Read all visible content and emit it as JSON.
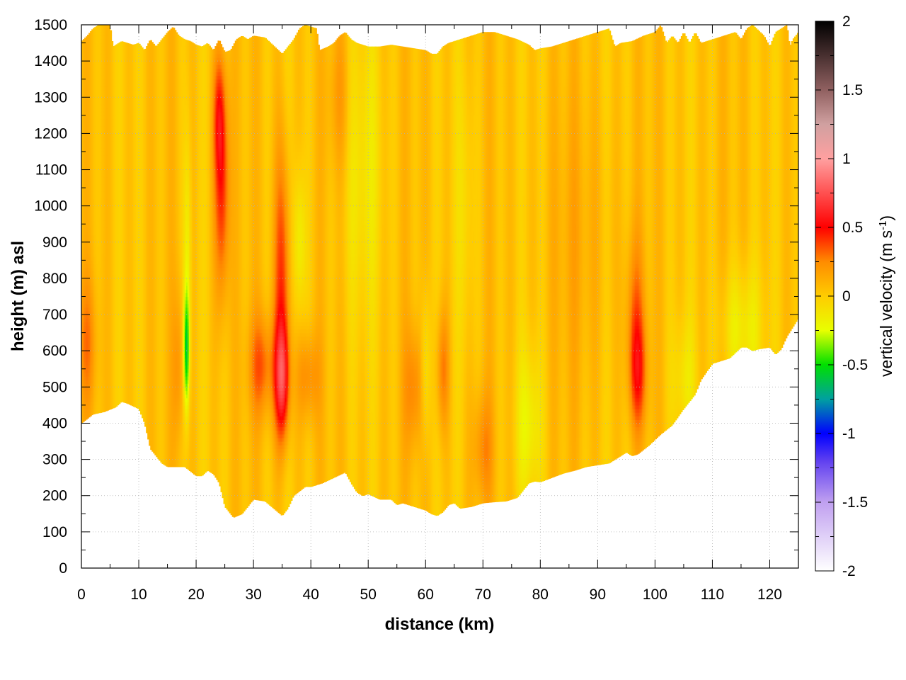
{
  "chart_data": {
    "type": "heatmap",
    "subtype": "filled-contour cross-section",
    "xlabel": "distance (km)",
    "ylabel": "height (m) asl",
    "xlim": [
      0,
      125
    ],
    "ylim": [
      0,
      1500
    ],
    "x_ticks": [
      0,
      10,
      20,
      30,
      40,
      50,
      60,
      70,
      80,
      90,
      100,
      110,
      120
    ],
    "x_tick_labels": [
      "0",
      "10",
      "20",
      "30",
      "40",
      "50",
      "60",
      "70",
      "80",
      "90",
      "100",
      "110",
      "120"
    ],
    "y_ticks": [
      0,
      100,
      200,
      300,
      400,
      500,
      600,
      700,
      800,
      900,
      1000,
      1100,
      1200,
      1300,
      1400,
      1500
    ],
    "y_tick_labels": [
      "0",
      "100",
      "200",
      "300",
      "400",
      "500",
      "600",
      "700",
      "800",
      "900",
      "1000",
      "1100",
      "1200",
      "1300",
      "1400",
      "1500"
    ],
    "grid": true,
    "colorbar": {
      "label_text": "vertical velocity (m s",
      "label_sup": "-1",
      "label_close": ")",
      "range": [
        -2,
        2
      ],
      "ticks": [
        2,
        1.5,
        1,
        0.5,
        0,
        -0.5,
        -1,
        -1.5,
        -2
      ],
      "tick_labels": [
        "2",
        "1.5",
        "1",
        "0.5",
        "0",
        "-0.5",
        "-1",
        "-1.5",
        "-2"
      ],
      "stops": [
        {
          "v": -2.0,
          "color": "#ffffff"
        },
        {
          "v": -1.5,
          "color": "#c0a0f0"
        },
        {
          "v": -1.2,
          "color": "#6040f0"
        },
        {
          "v": -1.0,
          "color": "#0000ff"
        },
        {
          "v": -0.75,
          "color": "#00a0a0"
        },
        {
          "v": -0.5,
          "color": "#00e000"
        },
        {
          "v": -0.25,
          "color": "#e8ff00"
        },
        {
          "v": 0.0,
          "color": "#ffcc00"
        },
        {
          "v": 0.25,
          "color": "#ff8c00"
        },
        {
          "v": 0.5,
          "color": "#ff0000"
        },
        {
          "v": 0.75,
          "color": "#ff5050"
        },
        {
          "v": 1.0,
          "color": "#ffa0a0"
        },
        {
          "v": 1.25,
          "color": "#d0a0a0"
        },
        {
          "v": 1.5,
          "color": "#906060"
        },
        {
          "v": 2.0,
          "color": "#000000"
        }
      ]
    },
    "bottom_boundary": [
      [
        0,
        400
      ],
      [
        2,
        425
      ],
      [
        4,
        432
      ],
      [
        6,
        445
      ],
      [
        7,
        460
      ],
      [
        8,
        455
      ],
      [
        10,
        440
      ],
      [
        11,
        400
      ],
      [
        12,
        330
      ],
      [
        14,
        290
      ],
      [
        15,
        280
      ],
      [
        18,
        280
      ],
      [
        20,
        255
      ],
      [
        21,
        255
      ],
      [
        22,
        270
      ],
      [
        23,
        260
      ],
      [
        24,
        235
      ],
      [
        25,
        170
      ],
      [
        26.5,
        140
      ],
      [
        28,
        150
      ],
      [
        30,
        190
      ],
      [
        32,
        185
      ],
      [
        33.5,
        165
      ],
      [
        35,
        145
      ],
      [
        36,
        165
      ],
      [
        37,
        200
      ],
      [
        39,
        225
      ],
      [
        40,
        225
      ],
      [
        42,
        235
      ],
      [
        44,
        250
      ],
      [
        46,
        265
      ],
      [
        47,
        235
      ],
      [
        48,
        210
      ],
      [
        49,
        200
      ],
      [
        50,
        205
      ],
      [
        52,
        190
      ],
      [
        54,
        190
      ],
      [
        55,
        175
      ],
      [
        56,
        180
      ],
      [
        58,
        170
      ],
      [
        60,
        160
      ],
      [
        61,
        150
      ],
      [
        62,
        145
      ],
      [
        63,
        155
      ],
      [
        64,
        175
      ],
      [
        65,
        180
      ],
      [
        66,
        165
      ],
      [
        68,
        170
      ],
      [
        70,
        180
      ],
      [
        72,
        183
      ],
      [
        74,
        185
      ],
      [
        76,
        195
      ],
      [
        78,
        235
      ],
      [
        79,
        240
      ],
      [
        80,
        238
      ],
      [
        82,
        250
      ],
      [
        84,
        262
      ],
      [
        86,
        270
      ],
      [
        88,
        280
      ],
      [
        90,
        285
      ],
      [
        92,
        290
      ],
      [
        93,
        300
      ],
      [
        95,
        320
      ],
      [
        96,
        310
      ],
      [
        97,
        315
      ],
      [
        99,
        340
      ],
      [
        101,
        370
      ],
      [
        103,
        395
      ],
      [
        105,
        440
      ],
      [
        107,
        480
      ],
      [
        108,
        520
      ],
      [
        110,
        565
      ],
      [
        112,
        575
      ],
      [
        113,
        580
      ],
      [
        114,
        595
      ],
      [
        115,
        610
      ],
      [
        116,
        610
      ],
      [
        117,
        600
      ],
      [
        118,
        605
      ],
      [
        120,
        610
      ],
      [
        121,
        590
      ],
      [
        122,
        605
      ],
      [
        123,
        640
      ],
      [
        124,
        665
      ],
      [
        125,
        690
      ]
    ],
    "top_boundary": [
      [
        0,
        1455
      ],
      [
        1,
        1470
      ],
      [
        2,
        1490
      ],
      [
        3,
        1500
      ],
      [
        5,
        1500
      ],
      [
        5.5,
        1440
      ],
      [
        6,
        1445
      ],
      [
        7,
        1455
      ],
      [
        8,
        1450
      ],
      [
        9,
        1445
      ],
      [
        10,
        1450
      ],
      [
        11,
        1430
      ],
      [
        12,
        1460
      ],
      [
        13,
        1440
      ],
      [
        14,
        1460
      ],
      [
        15,
        1480
      ],
      [
        16,
        1495
      ],
      [
        17,
        1470
      ],
      [
        18,
        1460
      ],
      [
        19,
        1455
      ],
      [
        20,
        1445
      ],
      [
        21,
        1440
      ],
      [
        22,
        1450
      ],
      [
        23,
        1430
      ],
      [
        24,
        1460
      ],
      [
        25,
        1425
      ],
      [
        26,
        1430
      ],
      [
        27,
        1460
      ],
      [
        28,
        1470
      ],
      [
        29,
        1460
      ],
      [
        30,
        1470
      ],
      [
        32,
        1465
      ],
      [
        33,
        1450
      ],
      [
        35,
        1420
      ],
      [
        36,
        1440
      ],
      [
        37,
        1460
      ],
      [
        38,
        1490
      ],
      [
        39,
        1500
      ],
      [
        41,
        1490
      ],
      [
        41.5,
        1430
      ],
      [
        43,
        1440
      ],
      [
        44,
        1450
      ],
      [
        45,
        1470
      ],
      [
        46,
        1480
      ],
      [
        47,
        1460
      ],
      [
        48,
        1450
      ],
      [
        50,
        1440
      ],
      [
        52,
        1440
      ],
      [
        54,
        1445
      ],
      [
        56,
        1440
      ],
      [
        58,
        1435
      ],
      [
        60,
        1430
      ],
      [
        61,
        1420
      ],
      [
        62,
        1420
      ],
      [
        63,
        1440
      ],
      [
        64,
        1450
      ],
      [
        66,
        1460
      ],
      [
        68,
        1470
      ],
      [
        70,
        1480
      ],
      [
        72,
        1480
      ],
      [
        74,
        1470
      ],
      [
        76,
        1460
      ],
      [
        78,
        1445
      ],
      [
        79,
        1430
      ],
      [
        80,
        1435
      ],
      [
        82,
        1440
      ],
      [
        84,
        1450
      ],
      [
        86,
        1460
      ],
      [
        88,
        1470
      ],
      [
        90,
        1480
      ],
      [
        92,
        1490
      ],
      [
        93,
        1440
      ],
      [
        94,
        1450
      ],
      [
        96,
        1455
      ],
      [
        98,
        1470
      ],
      [
        100,
        1480
      ],
      [
        101,
        1500
      ],
      [
        102,
        1450
      ],
      [
        103,
        1470
      ],
      [
        104,
        1450
      ],
      [
        105,
        1480
      ],
      [
        106,
        1450
      ],
      [
        107,
        1480
      ],
      [
        108,
        1450
      ],
      [
        110,
        1460
      ],
      [
        112,
        1470
      ],
      [
        114,
        1480
      ],
      [
        115,
        1460
      ],
      [
        116,
        1490
      ],
      [
        117,
        1500
      ],
      [
        119,
        1470
      ],
      [
        120,
        1440
      ],
      [
        121,
        1480
      ],
      [
        122,
        1490
      ],
      [
        123,
        1500
      ],
      [
        123.5,
        1440
      ],
      [
        124,
        1460
      ],
      [
        125,
        1480
      ]
    ],
    "updrafts": [
      {
        "x": 24.5,
        "y": 1050,
        "sx": 0.9,
        "sy": 220,
        "v": 0.42
      },
      {
        "x": 24.0,
        "y": 1250,
        "sx": 0.7,
        "sy": 120,
        "v": 0.3
      },
      {
        "x": 35.0,
        "y": 520,
        "sx": 0.9,
        "sy": 110,
        "v": 0.55
      },
      {
        "x": 35.0,
        "y": 800,
        "sx": 1.0,
        "sy": 260,
        "v": 0.38
      },
      {
        "x": 31.5,
        "y": 560,
        "sx": 1.6,
        "sy": 100,
        "v": 0.3
      },
      {
        "x": 39.5,
        "y": 530,
        "sx": 1.4,
        "sy": 90,
        "v": 0.22
      },
      {
        "x": 97.0,
        "y": 540,
        "sx": 1.1,
        "sy": 110,
        "v": 0.36
      },
      {
        "x": 96.5,
        "y": 720,
        "sx": 1.2,
        "sy": 150,
        "v": 0.2
      },
      {
        "x": 63.0,
        "y": 550,
        "sx": 0.8,
        "sy": 120,
        "v": 0.25
      },
      {
        "x": 58.0,
        "y": 500,
        "sx": 1.2,
        "sy": 120,
        "v": 0.22
      },
      {
        "x": 70.0,
        "y": 330,
        "sx": 1.2,
        "sy": 110,
        "v": 0.2
      },
      {
        "x": 1.0,
        "y": 620,
        "sx": 1.2,
        "sy": 130,
        "v": 0.2
      },
      {
        "x": 17.0,
        "y": 560,
        "sx": 0.8,
        "sy": 150,
        "v": 0.16
      },
      {
        "x": 45.0,
        "y": 1300,
        "sx": 1.5,
        "sy": 150,
        "v": 0.14
      },
      {
        "x": 87.0,
        "y": 900,
        "sx": 4.0,
        "sy": 300,
        "v": 0.08
      }
    ],
    "downdrafts": [
      {
        "x": 18.3,
        "y": 600,
        "sx": 0.35,
        "sy": 110,
        "v": -0.55
      },
      {
        "x": 18.5,
        "y": 850,
        "sx": 0.5,
        "sy": 250,
        "v": -0.2
      },
      {
        "x": 38.0,
        "y": 900,
        "sx": 0.8,
        "sy": 150,
        "v": -0.22
      },
      {
        "x": 49.0,
        "y": 1100,
        "sx": 2.5,
        "sy": 300,
        "v": -0.15
      },
      {
        "x": 60.0,
        "y": 550,
        "sx": 0.6,
        "sy": 150,
        "v": -0.2
      },
      {
        "x": 78.0,
        "y": 400,
        "sx": 1.5,
        "sy": 150,
        "v": -0.22
      },
      {
        "x": 115.0,
        "y": 660,
        "sx": 2.5,
        "sy": 120,
        "v": -0.22
      },
      {
        "x": 105.0,
        "y": 520,
        "sx": 1.5,
        "sy": 120,
        "v": -0.15
      },
      {
        "x": 67.0,
        "y": 1000,
        "sx": 1.2,
        "sy": 300,
        "v": -0.12
      }
    ],
    "background_value": 0.04
  }
}
